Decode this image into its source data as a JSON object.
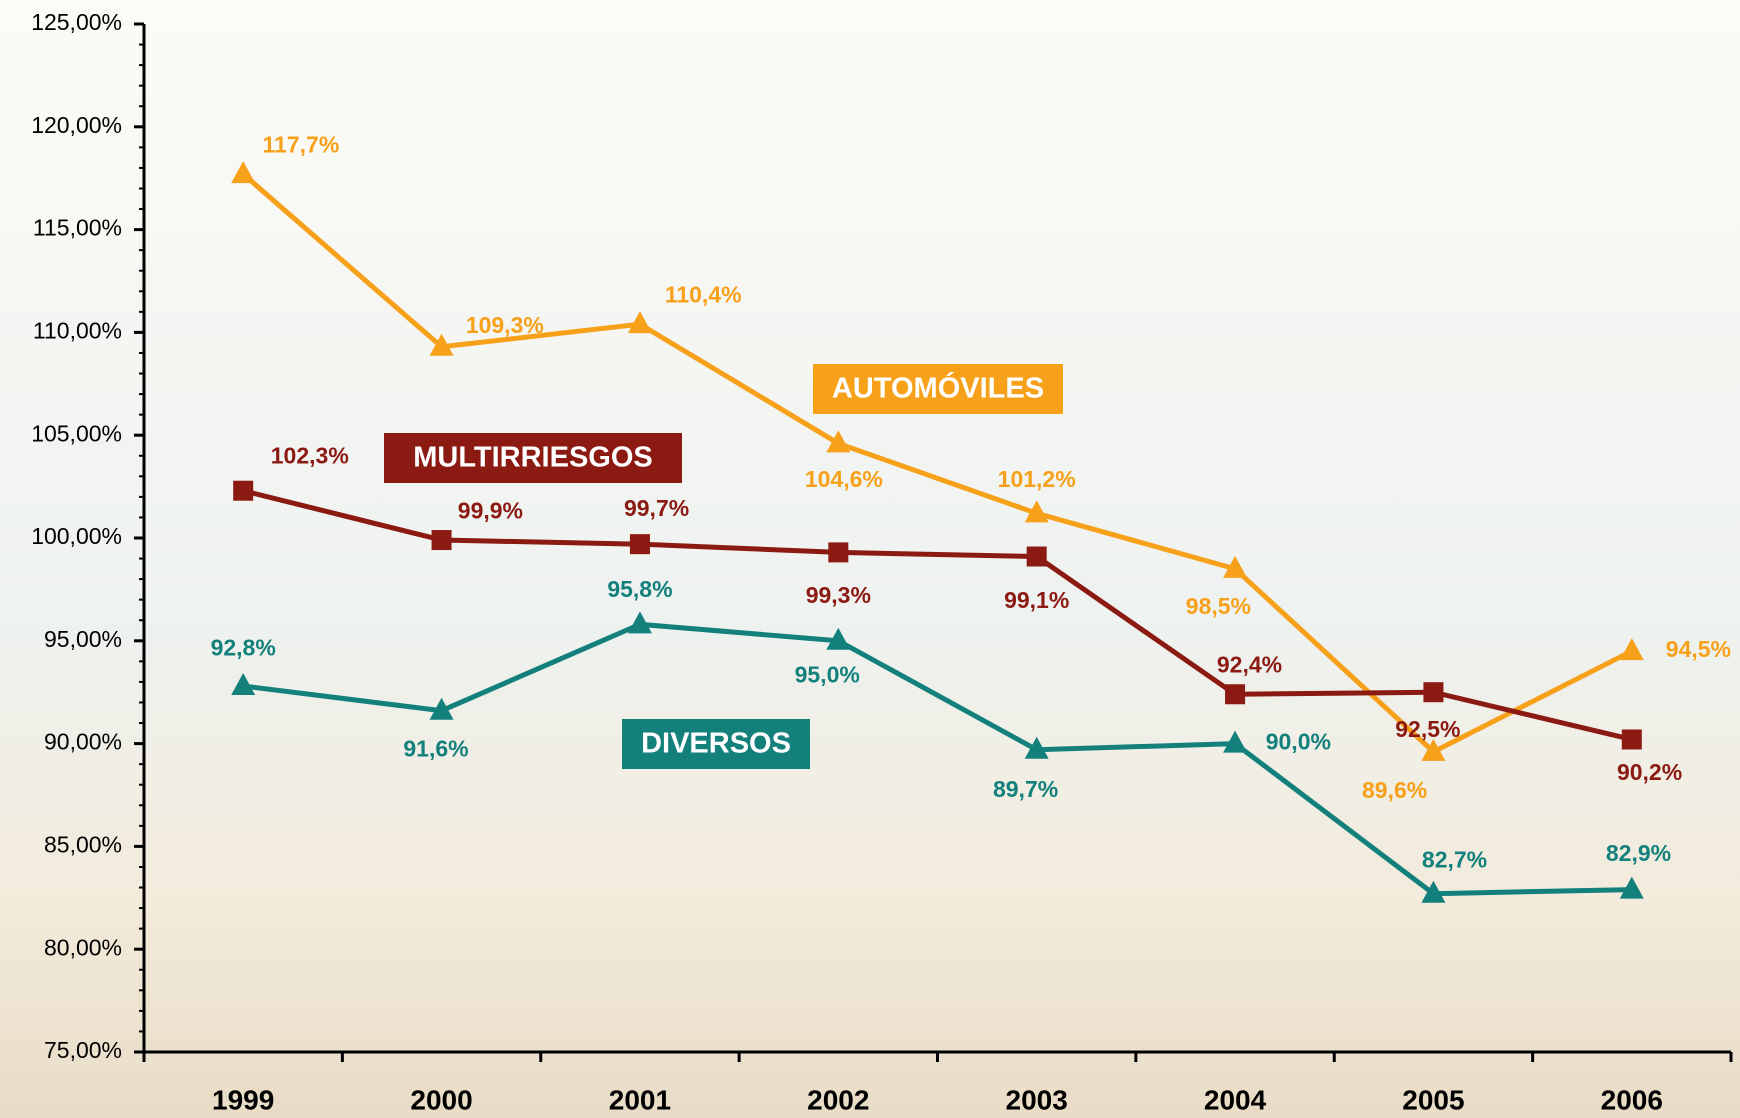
{
  "chart_data": {
    "type": "line",
    "categories": [
      "1999",
      "2000",
      "2001",
      "2002",
      "2003",
      "2004",
      "2005",
      "2006"
    ],
    "series": [
      {
        "name": "AUTOMÓVILES",
        "color": "#f7a01a",
        "marker": "triangle",
        "values": [
          117.7,
          109.3,
          110.4,
          104.6,
          101.2,
          98.5,
          89.6,
          94.5
        ],
        "value_labels": [
          "117,7%",
          "109,3%",
          "110,4%",
          "104,6%",
          "101,2%",
          "98,5%",
          "89,6%",
          "94,5%"
        ]
      },
      {
        "name": "MULTIRRIESGOS",
        "color": "#8b1a12",
        "marker": "square",
        "values": [
          102.3,
          99.9,
          99.7,
          99.3,
          99.1,
          92.4,
          92.5,
          90.2
        ],
        "value_labels": [
          "102,3%",
          "99,9%",
          "99,7%",
          "99,3%",
          "99,1%",
          "92,4%",
          "92,5%",
          "90,2%"
        ]
      },
      {
        "name": "DIVERSOS",
        "color": "#13807c",
        "marker": "triangle",
        "values": [
          92.8,
          91.6,
          95.8,
          95.0,
          89.7,
          90.0,
          82.7,
          82.9
        ],
        "value_labels": [
          "92,8%",
          "91,6%",
          "95,8%",
          "95,0%",
          "89,7%",
          "90,0%",
          "82,7%",
          "82,9%"
        ]
      }
    ],
    "ylim": [
      75,
      125
    ],
    "yticks": [
      {
        "value": 75,
        "label": "75,00%"
      },
      {
        "value": 80,
        "label": "80,00%"
      },
      {
        "value": 85,
        "label": "85,00%"
      },
      {
        "value": 90,
        "label": "90,00%"
      },
      {
        "value": 95,
        "label": "95,00%"
      },
      {
        "value": 100,
        "label": "100,00%"
      },
      {
        "value": 105,
        "label": "105,00%"
      },
      {
        "value": 110,
        "label": "110,00%"
      },
      {
        "value": 115,
        "label": "115,00%"
      },
      {
        "value": 120,
        "label": "120,00%"
      },
      {
        "value": 125,
        "label": "125,00%"
      }
    ],
    "grid": false
  }
}
